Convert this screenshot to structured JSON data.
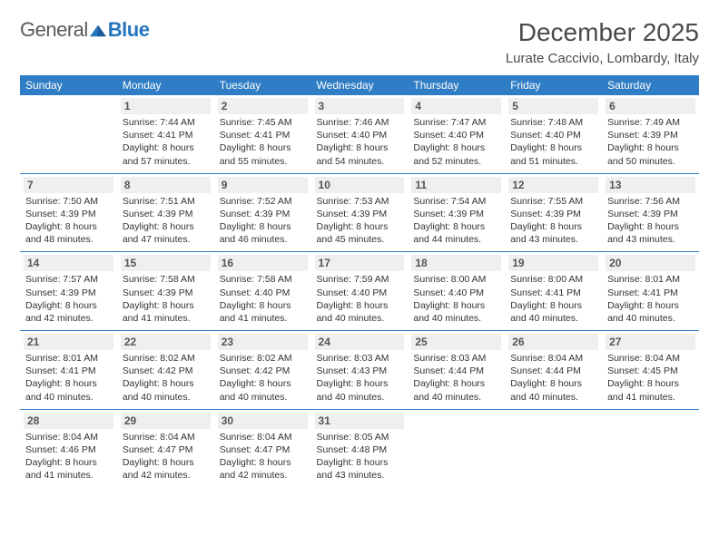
{
  "logo": {
    "text1": "General",
    "text2": "Blue"
  },
  "title": "December 2025",
  "location": "Lurate Caccivio, Lombardy, Italy",
  "colors": {
    "header_bg": "#2f7dc4",
    "header_text": "#ffffff",
    "daynum_bg": "#efefef",
    "border": "#2f7dc4",
    "logo_gray": "#5a5a5a",
    "logo_blue": "#2676bd"
  },
  "weekdays": [
    "Sunday",
    "Monday",
    "Tuesday",
    "Wednesday",
    "Thursday",
    "Friday",
    "Saturday"
  ],
  "weeks": [
    [
      null,
      {
        "d": "1",
        "sr": "Sunrise: 7:44 AM",
        "ss": "Sunset: 4:41 PM",
        "dl": "Daylight: 8 hours and 57 minutes."
      },
      {
        "d": "2",
        "sr": "Sunrise: 7:45 AM",
        "ss": "Sunset: 4:41 PM",
        "dl": "Daylight: 8 hours and 55 minutes."
      },
      {
        "d": "3",
        "sr": "Sunrise: 7:46 AM",
        "ss": "Sunset: 4:40 PM",
        "dl": "Daylight: 8 hours and 54 minutes."
      },
      {
        "d": "4",
        "sr": "Sunrise: 7:47 AM",
        "ss": "Sunset: 4:40 PM",
        "dl": "Daylight: 8 hours and 52 minutes."
      },
      {
        "d": "5",
        "sr": "Sunrise: 7:48 AM",
        "ss": "Sunset: 4:40 PM",
        "dl": "Daylight: 8 hours and 51 minutes."
      },
      {
        "d": "6",
        "sr": "Sunrise: 7:49 AM",
        "ss": "Sunset: 4:39 PM",
        "dl": "Daylight: 8 hours and 50 minutes."
      }
    ],
    [
      {
        "d": "7",
        "sr": "Sunrise: 7:50 AM",
        "ss": "Sunset: 4:39 PM",
        "dl": "Daylight: 8 hours and 48 minutes."
      },
      {
        "d": "8",
        "sr": "Sunrise: 7:51 AM",
        "ss": "Sunset: 4:39 PM",
        "dl": "Daylight: 8 hours and 47 minutes."
      },
      {
        "d": "9",
        "sr": "Sunrise: 7:52 AM",
        "ss": "Sunset: 4:39 PM",
        "dl": "Daylight: 8 hours and 46 minutes."
      },
      {
        "d": "10",
        "sr": "Sunrise: 7:53 AM",
        "ss": "Sunset: 4:39 PM",
        "dl": "Daylight: 8 hours and 45 minutes."
      },
      {
        "d": "11",
        "sr": "Sunrise: 7:54 AM",
        "ss": "Sunset: 4:39 PM",
        "dl": "Daylight: 8 hours and 44 minutes."
      },
      {
        "d": "12",
        "sr": "Sunrise: 7:55 AM",
        "ss": "Sunset: 4:39 PM",
        "dl": "Daylight: 8 hours and 43 minutes."
      },
      {
        "d": "13",
        "sr": "Sunrise: 7:56 AM",
        "ss": "Sunset: 4:39 PM",
        "dl": "Daylight: 8 hours and 43 minutes."
      }
    ],
    [
      {
        "d": "14",
        "sr": "Sunrise: 7:57 AM",
        "ss": "Sunset: 4:39 PM",
        "dl": "Daylight: 8 hours and 42 minutes."
      },
      {
        "d": "15",
        "sr": "Sunrise: 7:58 AM",
        "ss": "Sunset: 4:39 PM",
        "dl": "Daylight: 8 hours and 41 minutes."
      },
      {
        "d": "16",
        "sr": "Sunrise: 7:58 AM",
        "ss": "Sunset: 4:40 PM",
        "dl": "Daylight: 8 hours and 41 minutes."
      },
      {
        "d": "17",
        "sr": "Sunrise: 7:59 AM",
        "ss": "Sunset: 4:40 PM",
        "dl": "Daylight: 8 hours and 40 minutes."
      },
      {
        "d": "18",
        "sr": "Sunrise: 8:00 AM",
        "ss": "Sunset: 4:40 PM",
        "dl": "Daylight: 8 hours and 40 minutes."
      },
      {
        "d": "19",
        "sr": "Sunrise: 8:00 AM",
        "ss": "Sunset: 4:41 PM",
        "dl": "Daylight: 8 hours and 40 minutes."
      },
      {
        "d": "20",
        "sr": "Sunrise: 8:01 AM",
        "ss": "Sunset: 4:41 PM",
        "dl": "Daylight: 8 hours and 40 minutes."
      }
    ],
    [
      {
        "d": "21",
        "sr": "Sunrise: 8:01 AM",
        "ss": "Sunset: 4:41 PM",
        "dl": "Daylight: 8 hours and 40 minutes."
      },
      {
        "d": "22",
        "sr": "Sunrise: 8:02 AM",
        "ss": "Sunset: 4:42 PM",
        "dl": "Daylight: 8 hours and 40 minutes."
      },
      {
        "d": "23",
        "sr": "Sunrise: 8:02 AM",
        "ss": "Sunset: 4:42 PM",
        "dl": "Daylight: 8 hours and 40 minutes."
      },
      {
        "d": "24",
        "sr": "Sunrise: 8:03 AM",
        "ss": "Sunset: 4:43 PM",
        "dl": "Daylight: 8 hours and 40 minutes."
      },
      {
        "d": "25",
        "sr": "Sunrise: 8:03 AM",
        "ss": "Sunset: 4:44 PM",
        "dl": "Daylight: 8 hours and 40 minutes."
      },
      {
        "d": "26",
        "sr": "Sunrise: 8:04 AM",
        "ss": "Sunset: 4:44 PM",
        "dl": "Daylight: 8 hours and 40 minutes."
      },
      {
        "d": "27",
        "sr": "Sunrise: 8:04 AM",
        "ss": "Sunset: 4:45 PM",
        "dl": "Daylight: 8 hours and 41 minutes."
      }
    ],
    [
      {
        "d": "28",
        "sr": "Sunrise: 8:04 AM",
        "ss": "Sunset: 4:46 PM",
        "dl": "Daylight: 8 hours and 41 minutes."
      },
      {
        "d": "29",
        "sr": "Sunrise: 8:04 AM",
        "ss": "Sunset: 4:47 PM",
        "dl": "Daylight: 8 hours and 42 minutes."
      },
      {
        "d": "30",
        "sr": "Sunrise: 8:04 AM",
        "ss": "Sunset: 4:47 PM",
        "dl": "Daylight: 8 hours and 42 minutes."
      },
      {
        "d": "31",
        "sr": "Sunrise: 8:05 AM",
        "ss": "Sunset: 4:48 PM",
        "dl": "Daylight: 8 hours and 43 minutes."
      },
      null,
      null,
      null
    ]
  ]
}
